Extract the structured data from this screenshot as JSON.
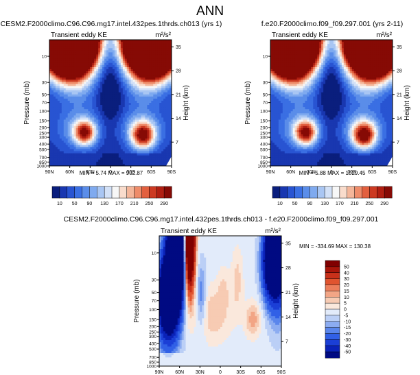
{
  "page_title": "ANN",
  "chart_data": [
    {
      "type": "heatmap",
      "title": "CESM2.F2000climo.C96.C96.mg17.intel.432pes.1thrds.ch013 (yrs 1)",
      "subtitle": "Transient eddy KE",
      "units": "m²/s²",
      "xlabel": "",
      "ylabel": "Pressure (mb)",
      "ylabel_right": "Height (km)",
      "x_ticks": [
        "90N",
        "60N",
        "30N",
        "0",
        "30S",
        "60S",
        "90S"
      ],
      "x_range": [
        90,
        -90
      ],
      "pressure_ticks": [
        "10",
        "30",
        "50",
        "70",
        "100",
        "150",
        "200",
        "250",
        "300",
        "400",
        "500",
        "700",
        "850",
        "1000"
      ],
      "pressure_tick_values": [
        10,
        30,
        50,
        70,
        100,
        150,
        200,
        250,
        300,
        400,
        500,
        700,
        850,
        1000
      ],
      "pressure_range": [
        1000,
        5
      ],
      "pressure_scale": "log",
      "height_ticks": [
        "7",
        "14",
        "21",
        "28",
        "35"
      ],
      "height_tick_values": [
        7,
        14,
        21,
        28,
        35
      ],
      "stats": {
        "min_label": "MIN =",
        "min": "5.74",
        "max_label": "MAX =",
        "max": "902.87"
      },
      "features": [
        {
          "lat": 60,
          "p": 5,
          "value": 300
        },
        {
          "lat": -60,
          "p": 5,
          "value": 300
        },
        {
          "lat": 38,
          "p": 250,
          "value": 230
        },
        {
          "lat": -48,
          "p": 280,
          "value": 250
        }
      ]
    },
    {
      "type": "heatmap",
      "title": "f.e20.F2000climo.f09_f09.297.001 (yrs 2-11)",
      "subtitle": "Transient eddy KE",
      "units": "m²/s²",
      "xlabel": "",
      "ylabel": "Pressure (mb)",
      "ylabel_right": "Height (km)",
      "x_ticks": [
        "90N",
        "60N",
        "30N",
        "0",
        "30S",
        "60S",
        "90S"
      ],
      "x_range": [
        90,
        -90
      ],
      "pressure_ticks": [
        "10",
        "30",
        "50",
        "70",
        "100",
        "150",
        "200",
        "250",
        "300",
        "400",
        "500",
        "700",
        "850",
        "1000"
      ],
      "pressure_tick_values": [
        10,
        30,
        50,
        70,
        100,
        150,
        200,
        250,
        300,
        400,
        500,
        700,
        850,
        1000
      ],
      "pressure_range": [
        1000,
        5
      ],
      "pressure_scale": "log",
      "height_ticks": [
        "7",
        "14",
        "21",
        "28",
        "35"
      ],
      "height_tick_values": [
        7,
        14,
        21,
        28,
        35
      ],
      "stats": {
        "min_label": "MIN =",
        "min": "5.88",
        "max_label": "MAX =",
        "max": "1029.45"
      },
      "features": [
        {
          "lat": 60,
          "p": 5,
          "value": 300
        },
        {
          "lat": -60,
          "p": 5,
          "value": 300
        },
        {
          "lat": 38,
          "p": 250,
          "value": 240
        },
        {
          "lat": -48,
          "p": 280,
          "value": 260
        }
      ]
    },
    {
      "type": "heatmap",
      "title": "CESM2.F2000climo.C96.C96.mg17.intel.432pes.1thrds.ch013 - f.e20.F2000climo.f09_f09.297.001",
      "subtitle": "Transient eddy KE",
      "units": "m²/s²",
      "xlabel": "",
      "ylabel": "Pressure (mb)",
      "ylabel_right": "Height (km)",
      "x_ticks": [
        "90N",
        "60N",
        "30N",
        "0",
        "30S",
        "60S",
        "90S"
      ],
      "x_range": [
        90,
        -90
      ],
      "pressure_ticks": [
        "10",
        "30",
        "50",
        "70",
        "100",
        "150",
        "200",
        "250",
        "300",
        "400",
        "500",
        "700",
        "850",
        "1000"
      ],
      "pressure_tick_values": [
        10,
        30,
        50,
        70,
        100,
        150,
        200,
        250,
        300,
        400,
        500,
        700,
        850,
        1000
      ],
      "pressure_range": [
        1000,
        5
      ],
      "pressure_scale": "log",
      "height_ticks": [
        "7",
        "14",
        "21",
        "28",
        "35"
      ],
      "height_tick_values": [
        7,
        14,
        21,
        28,
        35
      ],
      "stats": {
        "min_label": "MIN =",
        "min": "-334.69",
        "max_label": "MAX =",
        "max": "130.38"
      },
      "features": [
        {
          "lat": 45,
          "p": 5,
          "value": 60
        },
        {
          "lat": 62,
          "p": 5,
          "value": -50
        },
        {
          "lat": 70,
          "p": 40,
          "value": -40
        },
        {
          "lat": -90,
          "p": 5,
          "value": -50
        },
        {
          "lat": -75,
          "p": 10,
          "value": -40
        },
        {
          "lat": -15,
          "p": 100,
          "value": 7
        },
        {
          "lat": -48,
          "p": 150,
          "value": 12
        },
        {
          "lat": -28,
          "p": 25,
          "value": 6
        }
      ]
    }
  ],
  "colorbars": {
    "abs": {
      "labels": [
        "10",
        "50",
        "90",
        "130",
        "170",
        "210",
        "250",
        "290"
      ],
      "levels": [
        10,
        30,
        50,
        70,
        90,
        110,
        130,
        150,
        170,
        190,
        210,
        230,
        250,
        270,
        290
      ],
      "colors": [
        "#0a1e7d",
        "#1937b0",
        "#2854d2",
        "#3a6fe3",
        "#5a8de9",
        "#7faaef",
        "#a9c6f3",
        "#d3e1f7",
        "#f7f7f7",
        "#f9dccc",
        "#f4b69a",
        "#ee8c6a",
        "#e2603f",
        "#cc3a22",
        "#b01f12",
        "#860a05"
      ]
    },
    "diff": {
      "labels": [
        "50",
        "40",
        "30",
        "20",
        "15",
        "10",
        "5",
        "0",
        "-5",
        "-10",
        "-15",
        "-20",
        "-30",
        "-40",
        "-50"
      ],
      "levels": [
        -50,
        -40,
        -30,
        -20,
        -15,
        -10,
        -5,
        0,
        5,
        10,
        15,
        20,
        30,
        40,
        50
      ],
      "colors": [
        "#000a82",
        "#0a22b8",
        "#1b3fd6",
        "#3160e6",
        "#5a86ec",
        "#8cacf1",
        "#bbcff6",
        "#e2ebfa",
        "#fae8dc",
        "#f7cbb3",
        "#f2a585",
        "#ec7e5b",
        "#e0542f",
        "#c8301a",
        "#a8150a",
        "#800000"
      ]
    }
  }
}
